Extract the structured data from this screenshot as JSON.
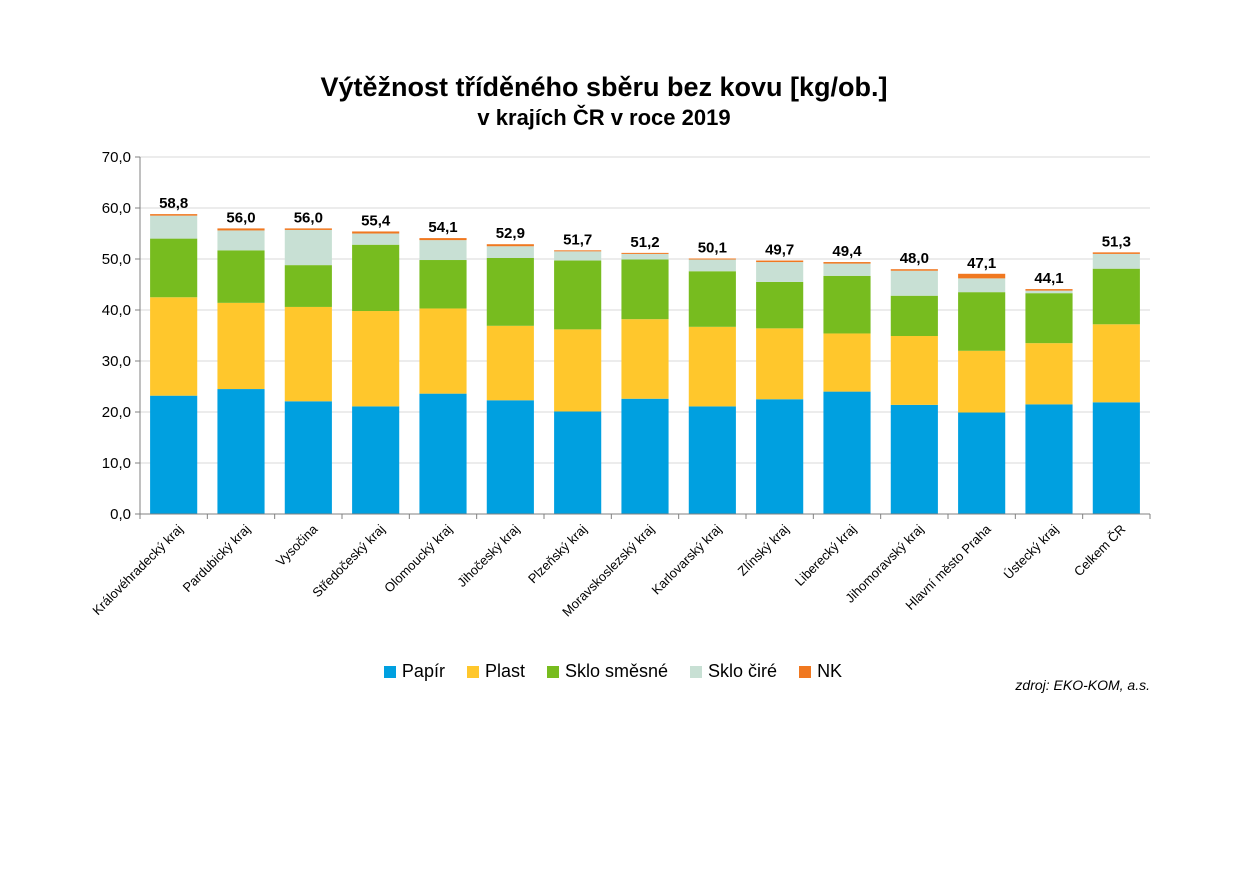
{
  "chart_data": {
    "type": "bar",
    "stacked": true,
    "title": "Výtěžnost tříděného sběru bez kovu [kg/ob.]",
    "subtitle": "v krajích ČR v roce 2019",
    "xlabel": "",
    "ylabel": "",
    "ylim": [
      0,
      70
    ],
    "yticks": [
      "0,0",
      "10,0",
      "20,0",
      "30,0",
      "40,0",
      "50,0",
      "60,0",
      "70,0"
    ],
    "grid": true,
    "legend_position": "bottom",
    "categories": [
      "Královéhradecký kraj",
      "Pardubický kraj",
      "Vysočina",
      "Středočeský kraj",
      "Olomoucký kraj",
      "Jihočeský kraj",
      "Plzeňský kraj",
      "Moravskoslezský kraj",
      "Karlovarský kraj",
      "Zlínský kraj",
      "Liberecký kraj",
      "Jihomoravský kraj",
      "Hlavní město Praha",
      "Ústecký kraj",
      "Celkem ČR"
    ],
    "totals": [
      "58,8",
      "56,0",
      "56,0",
      "55,4",
      "54,1",
      "52,9",
      "51,7",
      "51,2",
      "50,1",
      "49,7",
      "49,4",
      "48,0",
      "47,1",
      "44,1",
      "51,3"
    ],
    "series": [
      {
        "name": "Papír",
        "color": "#00A0E0",
        "values": [
          23.2,
          24.5,
          22.1,
          21.1,
          23.6,
          22.3,
          20.1,
          22.6,
          21.1,
          22.5,
          24.0,
          21.4,
          19.9,
          21.5,
          21.9
        ]
      },
      {
        "name": "Plast",
        "color": "#FFC72C",
        "values": [
          19.3,
          16.9,
          18.5,
          18.7,
          16.7,
          14.6,
          16.1,
          15.6,
          15.6,
          13.9,
          11.4,
          13.5,
          12.1,
          12.0,
          15.3
        ]
      },
      {
        "name": "Sklo směsné",
        "color": "#77BC1F",
        "values": [
          11.5,
          10.3,
          8.2,
          13.0,
          9.5,
          13.3,
          13.5,
          11.7,
          10.9,
          9.1,
          11.3,
          7.9,
          11.5,
          9.8,
          10.9
        ]
      },
      {
        "name": "Sklo čiré",
        "color": "#C8E0D4",
        "values": [
          4.5,
          3.9,
          6.9,
          2.2,
          3.9,
          2.3,
          1.8,
          1.1,
          2.3,
          3.9,
          2.4,
          4.9,
          2.7,
          0.5,
          2.9
        ]
      },
      {
        "name": "NK",
        "color": "#F07820",
        "values": [
          0.3,
          0.4,
          0.3,
          0.4,
          0.4,
          0.4,
          0.2,
          0.2,
          0.2,
          0.3,
          0.3,
          0.3,
          0.9,
          0.3,
          0.3
        ]
      }
    ]
  },
  "source_note": "zdroj: EKO-KOM, a.s."
}
